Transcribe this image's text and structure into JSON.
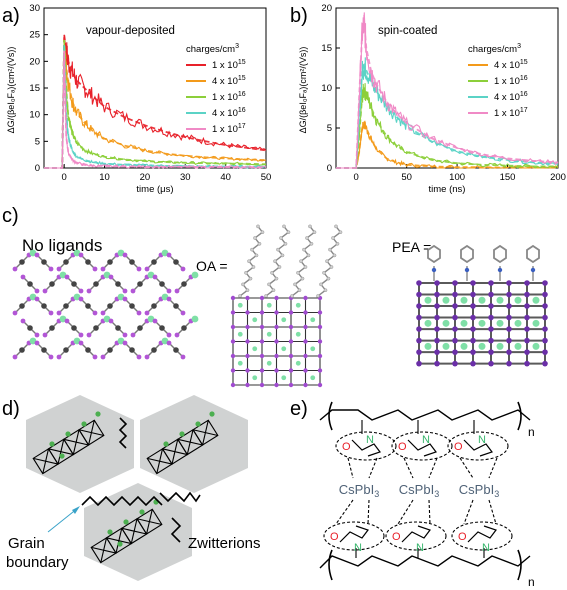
{
  "figure": {
    "panel_letters": [
      "a)",
      "b)",
      "c)",
      "d)",
      "e)"
    ]
  },
  "panel_a": {
    "title": "vapour-deposited",
    "legend_title": "charges/cm",
    "legend_title_sup": "3",
    "xlabel": "time (μs)",
    "ylabel": "ΔG/(βeI₀Fₐ)(cm²/(Vs))"
  },
  "panel_b": {
    "title": "spin-coated",
    "legend_title": "charges/cm",
    "legend_title_sup": "3",
    "xlabel": "time (ns)",
    "ylabel": "ΔG/(βeI₀Fₐ)(cm²/(Vs))"
  },
  "panel_c": {
    "labels": [
      "No ligands",
      "OA =",
      "PEA ="
    ]
  },
  "panel_d": {
    "labels": [
      "Zwitterions",
      "Grain",
      "boundary"
    ]
  },
  "panel_e": {
    "species": [
      "CsPbI",
      "CsPbI",
      "CsPbI"
    ],
    "subscript": "3",
    "repeat_label": "n",
    "atoms": [
      "O",
      "N"
    ]
  },
  "chart_data": [
    {
      "type": "line",
      "panel": "a",
      "title": "vapour-deposited",
      "xlabel": "time (μs)",
      "ylabel": "ΔG/(βeI₀Fₐ)(cm²/(Vs))",
      "xlim": [
        -5,
        50
      ],
      "ylim": [
        0,
        30
      ],
      "xticks": [
        0,
        10,
        20,
        30,
        40,
        50
      ],
      "yticks": [
        0,
        5,
        10,
        15,
        20,
        25,
        30
      ],
      "legend_position": "top-right",
      "x": [
        -5,
        -2,
        -0.5,
        0,
        0.5,
        1,
        2,
        3,
        5,
        7,
        10,
        15,
        20,
        25,
        30,
        35,
        40,
        45,
        50
      ],
      "series": [
        {
          "name": "1 x 10",
          "sup": "15",
          "color": "#e8212a",
          "values": [
            0,
            0,
            0,
            25,
            22,
            20,
            18,
            16.5,
            15,
            13.5,
            11.5,
            9.5,
            8,
            6.8,
            5.8,
            5,
            4.3,
            3.8,
            3.3
          ]
        },
        {
          "name": "4 x 10",
          "sup": "15",
          "color": "#f39a1a",
          "values": [
            0,
            0,
            0,
            24,
            19,
            16,
            12.5,
            10.5,
            8.5,
            7,
            5.5,
            4.2,
            3.3,
            2.7,
            2.3,
            2,
            1.8,
            1.6,
            1.5
          ]
        },
        {
          "name": "1 x 10",
          "sup": "16",
          "color": "#8ccf3a",
          "values": [
            0,
            0,
            0,
            24,
            15,
            10,
            6.5,
            4.8,
            3.4,
            2.7,
            2.1,
            1.6,
            1.3,
            1.1,
            1,
            0.9,
            0.8,
            0.8,
            0.7
          ]
        },
        {
          "name": "4 x 10",
          "sup": "16",
          "color": "#5bd3c6",
          "values": [
            0,
            0,
            0,
            23,
            10,
            6,
            3.2,
            2.2,
            1.5,
            1.1,
            0.8,
            0.6,
            0.5,
            0.4,
            0.35,
            0.3,
            0.3,
            0.25,
            0.25
          ]
        },
        {
          "name": "1 x 10",
          "sup": "17",
          "color": "#f08ac6",
          "values": [
            0,
            0,
            0,
            22,
            6,
            3,
            1.5,
            1,
            0.6,
            0.45,
            0.35,
            0.3,
            0.25,
            0.2,
            0.2,
            0.2,
            0.15,
            0.15,
            0.15
          ]
        }
      ]
    },
    {
      "type": "line",
      "panel": "b",
      "title": "spin-coated",
      "xlabel": "time (ns)",
      "ylabel": "ΔG/(βeI₀Fₐ)(cm²/(Vs))",
      "xlim": [
        -20,
        200
      ],
      "ylim": [
        0,
        20
      ],
      "xticks": [
        0,
        50,
        100,
        150,
        200
      ],
      "yticks": [
        0,
        5,
        10,
        15,
        20
      ],
      "legend_position": "right",
      "x": [
        -20,
        0,
        3,
        6,
        8,
        10,
        15,
        20,
        30,
        40,
        50,
        75,
        100,
        125,
        150,
        175,
        200
      ],
      "series": [
        {
          "name": "4 x 10",
          "sup": "15",
          "color": "#f39a1a",
          "values": [
            0,
            0,
            2,
            5,
            5.5,
            5,
            3.5,
            2.4,
            1.2,
            0.7,
            0.4,
            0.2,
            0.1,
            0.1,
            0.05,
            0.05,
            0.05
          ]
        },
        {
          "name": "1 x 10",
          "sup": "16",
          "color": "#8ccf3a",
          "values": [
            0,
            0,
            4,
            9,
            9.8,
            9.2,
            7.5,
            6,
            4,
            2.8,
            2,
            1,
            0.6,
            0.4,
            0.3,
            0.2,
            0.2
          ]
        },
        {
          "name": "4 x 10",
          "sup": "16",
          "color": "#5bd3c6",
          "values": [
            0,
            0,
            6,
            12,
            12.8,
            12.2,
            10.8,
            9.6,
            7.8,
            6.4,
            5.2,
            3.3,
            2.1,
            1.4,
            1,
            0.7,
            0.5
          ]
        },
        {
          "name": "1 x 10",
          "sup": "17",
          "color": "#f08ac6",
          "values": [
            0,
            0,
            9,
            17,
            18,
            15,
            12,
            10.5,
            8.3,
            6.8,
            5.6,
            3.7,
            2.5,
            1.7,
            1.2,
            0.9,
            0.7
          ]
        }
      ]
    }
  ]
}
